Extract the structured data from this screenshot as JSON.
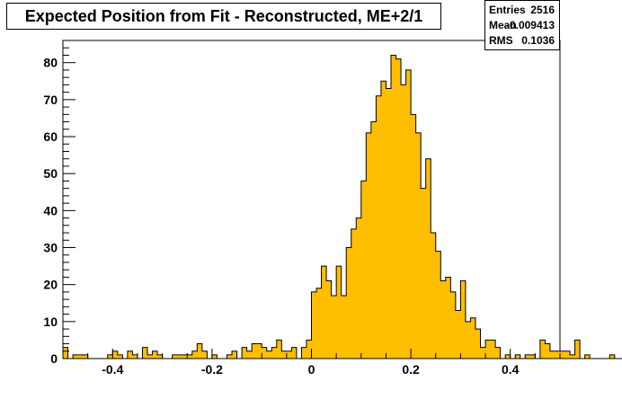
{
  "title": "Expected Position from Fit - Reconstructed, ME+2/1",
  "stats": [
    {
      "label": "Entries",
      "value": "2516"
    },
    {
      "label": "Mean",
      "value": "-0.009413"
    },
    {
      "label": "RMS",
      "value": "0.1036"
    }
  ],
  "colors": {
    "fill": "#ffbe00",
    "line": "#000000",
    "background": "#ffffff"
  },
  "chart_data": {
    "type": "bar",
    "title": "Expected Position from Fit - Reconstructed, ME+2/1",
    "xlabel": "",
    "ylabel": "",
    "xlim": [
      -0.5,
      0.5
    ],
    "ylim": [
      0,
      86
    ],
    "bin_width": 0.01,
    "xticks": [
      -0.4,
      -0.2,
      0,
      0.2,
      0.4
    ],
    "xtick_labels": [
      "-0.4",
      "-0.2",
      "0",
      "0.2",
      "0.4"
    ],
    "yticks": [
      0,
      10,
      20,
      30,
      40,
      50,
      60,
      70,
      80
    ],
    "ytick_labels": [
      "0",
      "10",
      "20",
      "30",
      "40",
      "50",
      "60",
      "70",
      "80"
    ],
    "series": [
      {
        "values": [
          3,
          0,
          1,
          1,
          1,
          0,
          0,
          0,
          0,
          1,
          2,
          1,
          0,
          2,
          1,
          0,
          3,
          1,
          2,
          1,
          0,
          0,
          1,
          1,
          1,
          1,
          2,
          4,
          2,
          0,
          1,
          0,
          0,
          1,
          2,
          0,
          3,
          2,
          4,
          4,
          3,
          2,
          3,
          5,
          2,
          2,
          3,
          0,
          3,
          5,
          18,
          19,
          25,
          21,
          17,
          25,
          17,
          30,
          35,
          38,
          48,
          61,
          64,
          71,
          75,
          73,
          82,
          81,
          74,
          78,
          66,
          61,
          46,
          54,
          34,
          29,
          21,
          22,
          18,
          13,
          21,
          10,
          11,
          8,
          3,
          5,
          5,
          3,
          0,
          1,
          0,
          1,
          0,
          1,
          1,
          0,
          5,
          4,
          2,
          2,
          2,
          2,
          1,
          5,
          0,
          1,
          0,
          0,
          0,
          0,
          1,
          0,
          0,
          2,
          0,
          1,
          0,
          0,
          1,
          0,
          0,
          0,
          0,
          0,
          1,
          0,
          0,
          0,
          1,
          1,
          2,
          0,
          1,
          0,
          1,
          0,
          0,
          0,
          0,
          0,
          0,
          0,
          0,
          1,
          0,
          0,
          0,
          0,
          0
        ]
      }
    ]
  }
}
